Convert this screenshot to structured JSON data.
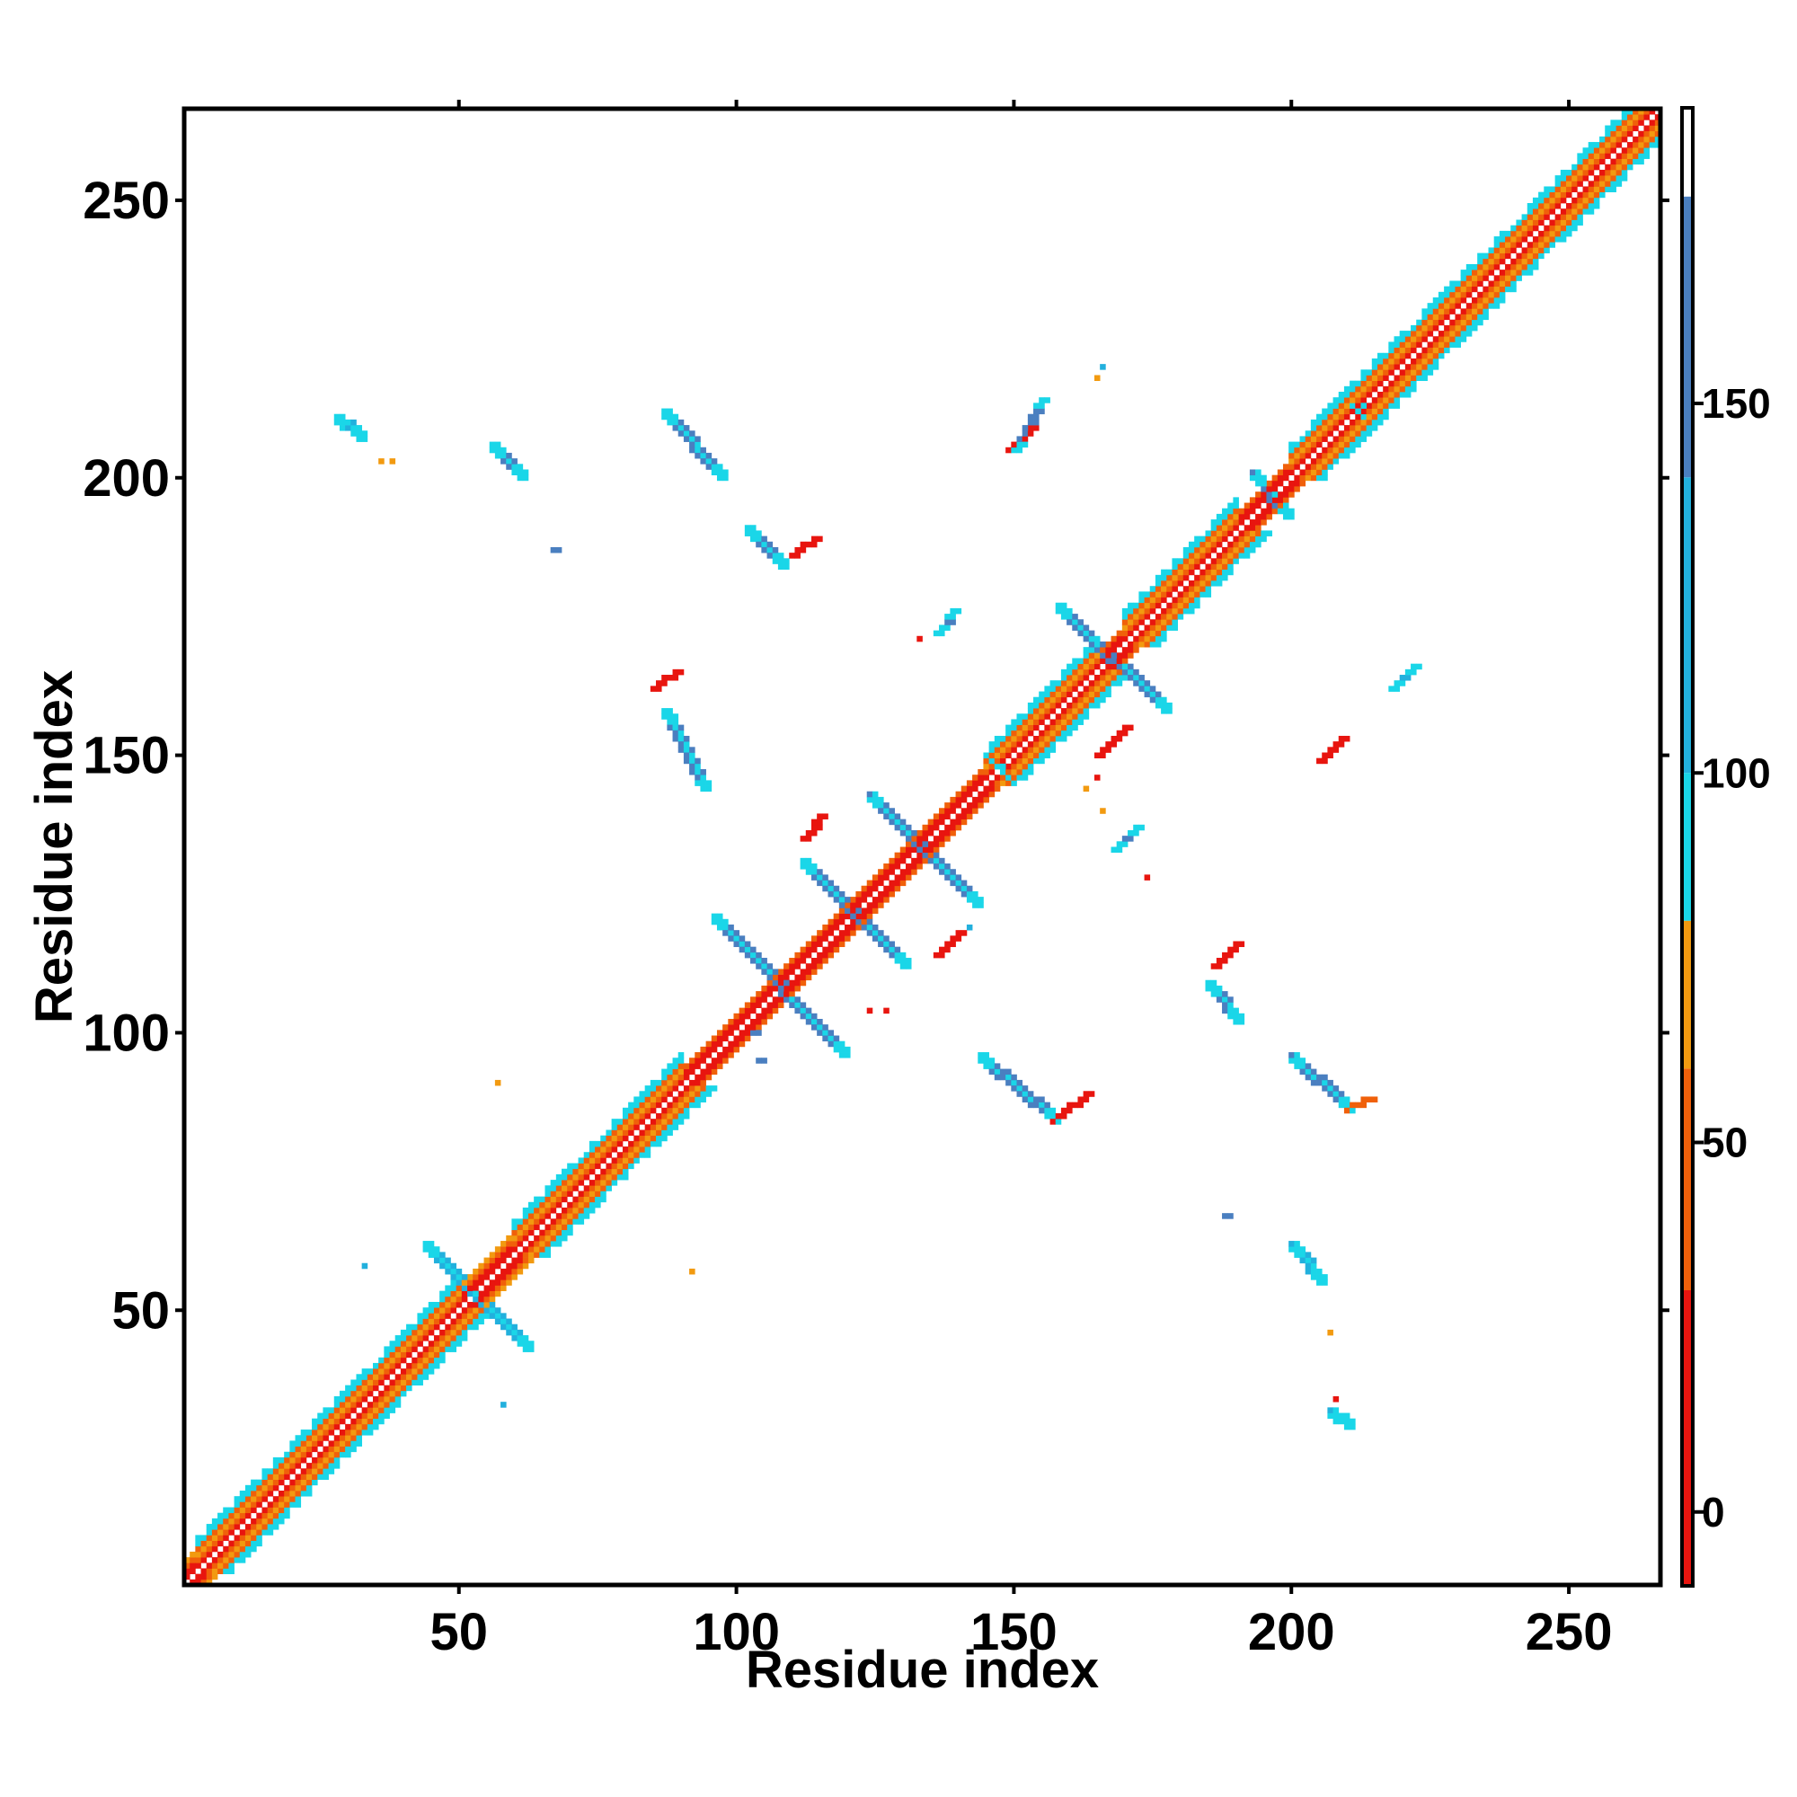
{
  "chart_data": {
    "type": "heatmap",
    "title": "",
    "xlabel": "Residue index",
    "ylabel": "Residue index",
    "xlim": [
      1,
      266
    ],
    "ylim": [
      1,
      266
    ],
    "x_ticks": [
      50,
      100,
      150,
      200,
      250
    ],
    "y_ticks": [
      50,
      100,
      150,
      200,
      250
    ],
    "grid": false,
    "legend": "colorbar-right",
    "colorbar": {
      "range": [
        -10,
        190
      ],
      "ticks": [
        0,
        50,
        100,
        150
      ],
      "bands": [
        {
          "from": -10,
          "to": 30,
          "color": "#e8150f"
        },
        {
          "from": 30,
          "to": 60,
          "color": "#f0600a"
        },
        {
          "from": 60,
          "to": 80,
          "color": "#f29a10"
        },
        {
          "from": 80,
          "to": 100,
          "color": "#1ad6e8"
        },
        {
          "from": 100,
          "to": 140,
          "color": "#22b0dd"
        },
        {
          "from": 140,
          "to": 178,
          "color": "#4a7fc0"
        },
        {
          "from": 178,
          "to": 190,
          "color": "#ffffff"
        }
      ]
    },
    "diagonal": {
      "start": 1,
      "end": 266
    },
    "helix_segments": [
      [
        3,
        30
      ],
      [
        30,
        50
      ],
      [
        60,
        90
      ],
      [
        145,
        165
      ],
      [
        170,
        190
      ],
      [
        200,
        266
      ]
    ],
    "strand_segments": [
      [
        90,
        150
      ],
      [
        165,
        200
      ]
    ],
    "contact_features": [
      {
        "kind": "anti",
        "start": [
          44,
          61
        ],
        "end": [
          62,
          43
        ],
        "value": 120
      },
      {
        "kind": "anti",
        "start": [
          96,
          120
        ],
        "end": [
          119,
          96
        ],
        "value": 160
      },
      {
        "kind": "anti",
        "start": [
          112,
          130
        ],
        "end": [
          130,
          112
        ],
        "value": 160
      },
      {
        "kind": "anti",
        "start": [
          124,
          142
        ],
        "end": [
          143,
          123
        ],
        "value": 160
      },
      {
        "kind": "anti",
        "start": [
          158,
          176
        ],
        "end": [
          177,
          158
        ],
        "value": 160
      },
      {
        "kind": "anti",
        "start": [
          87,
          157
        ],
        "end": [
          94,
          144
        ],
        "value": 160
      },
      {
        "kind": "anti",
        "start": [
          87,
          211
        ],
        "end": [
          97,
          200
        ],
        "value": 160
      },
      {
        "kind": "anti",
        "start": [
          102,
          190
        ],
        "end": [
          108,
          184
        ],
        "value": 160
      },
      {
        "kind": "anti",
        "start": [
          56,
          205
        ],
        "end": [
          61,
          200
        ],
        "value": 160
      },
      {
        "kind": "anti",
        "start": [
          28,
          210
        ],
        "end": [
          32,
          207
        ],
        "value": 120
      },
      {
        "kind": "anti",
        "start": [
          144,
          95
        ],
        "end": [
          157,
          84
        ],
        "value": 160
      },
      {
        "kind": "anti",
        "start": [
          200,
          95
        ],
        "end": [
          210,
          86
        ],
        "value": 160
      },
      {
        "kind": "anti",
        "start": [
          185,
          108
        ],
        "end": [
          190,
          102
        ],
        "value": 160
      },
      {
        "kind": "anti",
        "start": [
          200,
          61
        ],
        "end": [
          205,
          55
        ],
        "value": 120
      },
      {
        "kind": "anti",
        "start": [
          207,
          31
        ],
        "end": [
          210,
          29
        ],
        "value": 120
      },
      {
        "kind": "anti",
        "start": [
          193,
          200
        ],
        "end": [
          199,
          193
        ],
        "value": 140
      },
      {
        "kind": "anti",
        "start": [
          211,
          213
        ],
        "end": [
          213,
          211
        ],
        "value": 120
      },
      {
        "kind": "anti",
        "start": [
          146,
          149
        ],
        "end": [
          149,
          146
        ],
        "value": 140
      },
      {
        "kind": "par",
        "start": [
          85,
          162
        ],
        "end": [
          89,
          165
        ],
        "value": 10
      },
      {
        "kind": "par",
        "start": [
          112,
          135
        ],
        "end": [
          115,
          139
        ],
        "value": 10
      },
      {
        "kind": "par",
        "start": [
          149,
          205
        ],
        "end": [
          153,
          209
        ],
        "value": 10
      },
      {
        "kind": "par",
        "start": [
          136,
          114
        ],
        "end": [
          140,
          118
        ],
        "value": 10
      },
      {
        "kind": "par",
        "start": [
          205,
          149
        ],
        "end": [
          209,
          153
        ],
        "value": 10
      },
      {
        "kind": "par",
        "start": [
          186,
          112
        ],
        "end": [
          190,
          116
        ],
        "value": 10
      },
      {
        "kind": "par",
        "start": [
          157,
          84
        ],
        "end": [
          163,
          89
        ],
        "value": 10
      },
      {
        "kind": "par",
        "start": [
          110,
          186
        ],
        "end": [
          114,
          189
        ],
        "value": 10
      },
      {
        "kind": "par",
        "start": [
          210,
          86
        ],
        "end": [
          214,
          88
        ],
        "value": 50
      },
      {
        "kind": "par",
        "start": [
          165,
          150
        ],
        "end": [
          170,
          155
        ],
        "value": 10
      },
      {
        "kind": "par",
        "start": [
          218,
          162
        ],
        "end": [
          222,
          166
        ],
        "value": 110
      },
      {
        "kind": "par",
        "start": [
          168,
          133
        ],
        "end": [
          172,
          137
        ],
        "value": 160
      },
      {
        "kind": "par",
        "start": [
          136,
          172
        ],
        "end": [
          139,
          176
        ],
        "value": 160
      },
      {
        "kind": "par",
        "start": [
          150,
          205
        ],
        "end": [
          155,
          214
        ],
        "value": 160
      }
    ],
    "isolated_contacts": [
      [
        67,
        187,
        160
      ],
      [
        188,
        67,
        160
      ],
      [
        57,
        91,
        60
      ],
      [
        92,
        57,
        60
      ],
      [
        33,
        58,
        100
      ],
      [
        58,
        33,
        100
      ],
      [
        166,
        220,
        100
      ],
      [
        165,
        218,
        60
      ],
      [
        103,
        100,
        140
      ],
      [
        104,
        95,
        140
      ],
      [
        207,
        46,
        60
      ],
      [
        208,
        34,
        10
      ],
      [
        174,
        128,
        10
      ],
      [
        133,
        171,
        10
      ],
      [
        124,
        104,
        10
      ],
      [
        127,
        104,
        10
      ],
      [
        163,
        144,
        60
      ],
      [
        165,
        146,
        10
      ],
      [
        142,
        119,
        100
      ],
      [
        166,
        140,
        60
      ],
      [
        38,
        203,
        60
      ],
      [
        36,
        203,
        60
      ]
    ]
  }
}
